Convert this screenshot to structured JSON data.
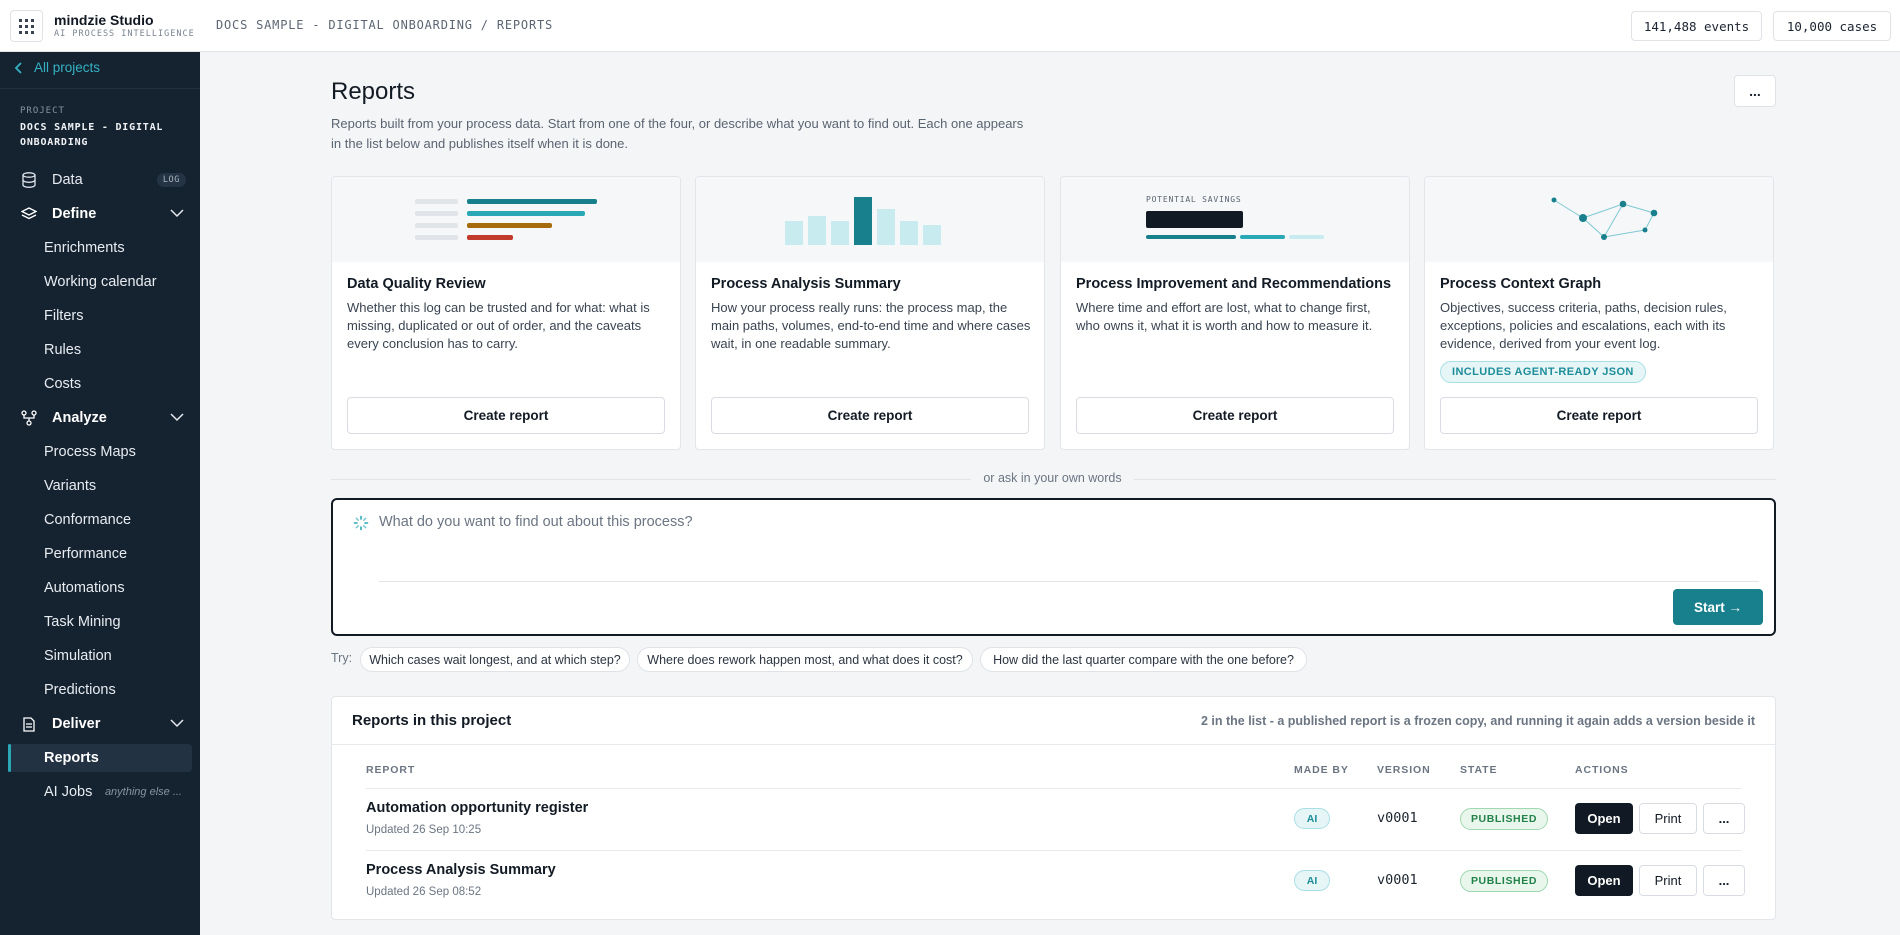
{
  "app": {
    "name": "mindzie Studio",
    "tagline": "AI PROCESS INTELLIGENCE",
    "breadcrumb": "DOCS SAMPLE - DIGITAL ONBOARDING / REPORTS",
    "events": "141,488 events",
    "cases": "10,000 cases",
    "menu_icon": "grid-icon"
  },
  "sidebar": {
    "back_label": "All projects",
    "project_label": "PROJECT",
    "project_name": "DOCS SAMPLE - DIGITAL ONBOARDING",
    "data": {
      "label": "Data",
      "badge": "LOG",
      "icon": "database-icon"
    },
    "define": {
      "label": "Define",
      "icon": "layers-icon",
      "items": [
        "Enrichments",
        "Working calendar",
        "Filters",
        "Rules",
        "Costs"
      ]
    },
    "analyze": {
      "label": "Analyze",
      "icon": "network-icon",
      "items": [
        "Process Maps",
        "Variants",
        "Conformance",
        "Performance",
        "Automations",
        "Task Mining",
        "Simulation",
        "Predictions"
      ]
    },
    "deliver": {
      "label": "Deliver",
      "icon": "document-icon",
      "items": [
        "Reports",
        "AI Jobs"
      ],
      "active": "Reports",
      "ai_jobs_hint": "anything else ..."
    }
  },
  "main": {
    "title": "Reports",
    "description": "Reports built from your process data. Start from one of the four, or describe what you want to find out. Each one appears in the list below and publishes itself when it is done.",
    "more_label": "...",
    "cards": [
      {
        "title": "Data Quality Review",
        "description": "Whether this log can be trusted and for what: what is missing, duplicated or out of order, and the caveats every conclusion has to carry.",
        "button": "Create report"
      },
      {
        "title": "Process Analysis Summary",
        "description": "How your process really runs: the process map, the main paths, volumes, end-to-end time and where cases wait, in one readable summary.",
        "button": "Create report"
      },
      {
        "title": "Process Improvement and Recommendations",
        "description": "Where time and effort are lost, what to change first, who owns it, what it is worth and how to measure it.",
        "button": "Create report",
        "visual_label": "POTENTIAL SAVINGS"
      },
      {
        "title": "Process Context Graph",
        "description": "Objectives, success criteria, paths, decision rules, exceptions, policies and escalations, each with its evidence, derived from your event log.",
        "badge": "INCLUDES AGENT-READY JSON",
        "button": "Create report"
      }
    ],
    "divider": "or ask in your own words",
    "ask": {
      "placeholder": "What do you want to find out about this process?",
      "start": "Start →"
    },
    "try_label": "Try:",
    "suggestions": [
      "Which cases wait longest, and at which step?",
      "Where does rework happen most, and what does it cost?",
      "How did the last quarter compare with the one before?"
    ],
    "list": {
      "title": "Reports in this project",
      "note": "2 in the list - a published report is a frozen copy, and running it again adds a version beside it",
      "headers": {
        "report": "REPORT",
        "made_by": "MADE BY",
        "version": "VERSION",
        "state": "STATE",
        "actions": "ACTIONS"
      },
      "rows": [
        {
          "name": "Automation opportunity register",
          "updated": "Updated 26 Sep 10:25",
          "made_by": "AI",
          "version": "v0001",
          "state": "PUBLISHED",
          "open": "Open",
          "print": "Print",
          "more": "..."
        },
        {
          "name": "Process Analysis Summary",
          "updated": "Updated 26 Sep 08:52",
          "made_by": "AI",
          "version": "v0001",
          "state": "PUBLISHED",
          "open": "Open",
          "print": "Print",
          "more": "..."
        }
      ]
    }
  },
  "colors": {
    "sidebar_bg": "#152230",
    "accent_teal": "#17808c",
    "link_teal": "#35b3c4",
    "dark": "#111a24",
    "published_green": "#22824a"
  }
}
